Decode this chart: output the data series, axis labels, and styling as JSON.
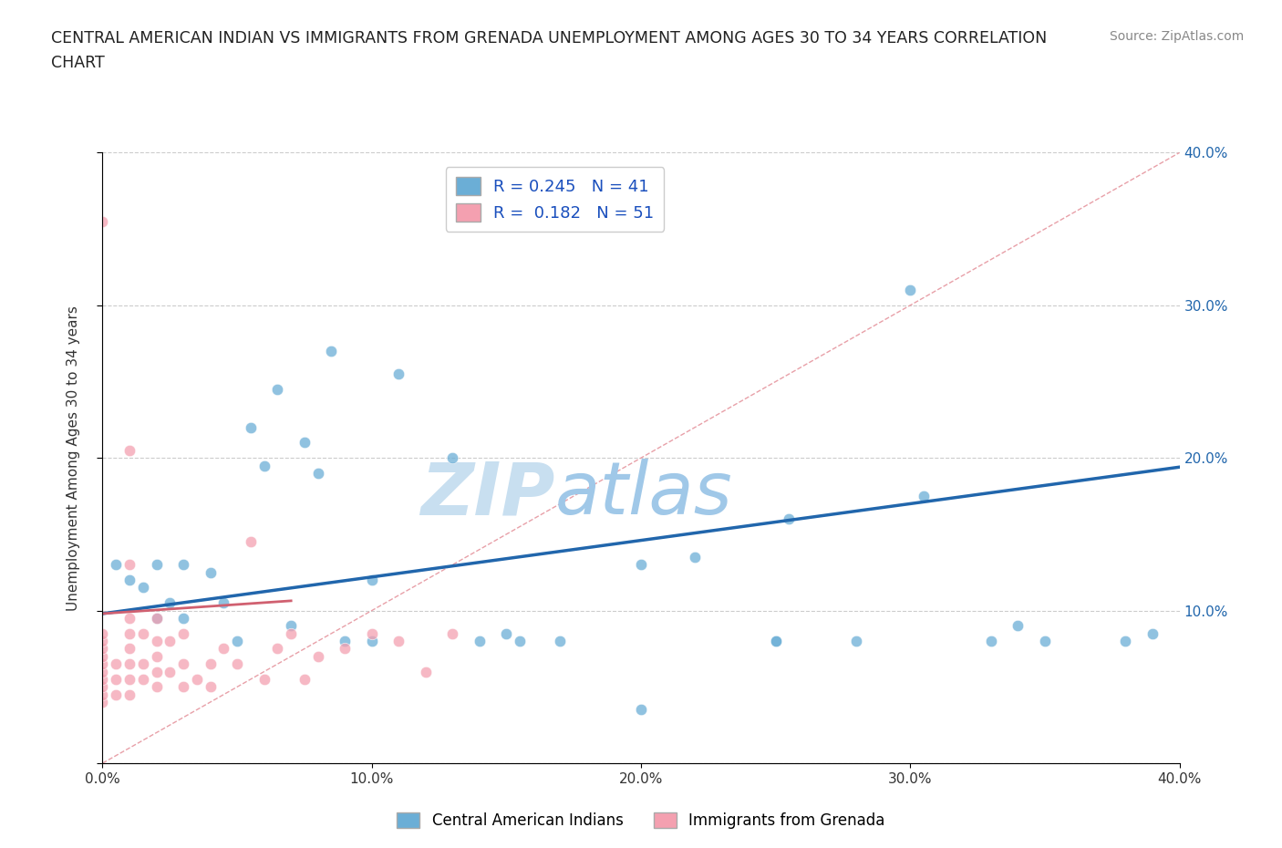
{
  "title_line1": "CENTRAL AMERICAN INDIAN VS IMMIGRANTS FROM GRENADA UNEMPLOYMENT AMONG AGES 30 TO 34 YEARS CORRELATION",
  "title_line2": "CHART",
  "source_text": "Source: ZipAtlas.com",
  "ylabel": "Unemployment Among Ages 30 to 34 years",
  "xlim": [
    0.0,
    0.4
  ],
  "ylim": [
    0.0,
    0.4
  ],
  "x_ticks": [
    0.0,
    0.1,
    0.2,
    0.3,
    0.4
  ],
  "y_ticks": [
    0.0,
    0.1,
    0.2,
    0.3,
    0.4
  ],
  "x_tick_labels": [
    "0.0%",
    "10.0%",
    "20.0%",
    "30.0%",
    "40.0%"
  ],
  "y_tick_labels_right": [
    "",
    "10.0%",
    "20.0%",
    "30.0%",
    "40.0%"
  ],
  "background_color": "#ffffff",
  "watermark_zip": "ZIP",
  "watermark_atlas": "atlas",
  "watermark_color": "#c8dff0",
  "blue_R": 0.245,
  "blue_N": 41,
  "pink_R": 0.182,
  "pink_N": 51,
  "blue_scatter_x": [
    0.005,
    0.01,
    0.015,
    0.02,
    0.02,
    0.025,
    0.03,
    0.03,
    0.04,
    0.045,
    0.05,
    0.055,
    0.06,
    0.065,
    0.07,
    0.075,
    0.08,
    0.085,
    0.09,
    0.1,
    0.1,
    0.11,
    0.13,
    0.14,
    0.15,
    0.155,
    0.17,
    0.2,
    0.22,
    0.25,
    0.255,
    0.28,
    0.3,
    0.305,
    0.33,
    0.34,
    0.35,
    0.38,
    0.39,
    0.2,
    0.25
  ],
  "blue_scatter_y": [
    0.13,
    0.12,
    0.115,
    0.095,
    0.13,
    0.105,
    0.095,
    0.13,
    0.125,
    0.105,
    0.08,
    0.22,
    0.195,
    0.245,
    0.09,
    0.21,
    0.19,
    0.27,
    0.08,
    0.08,
    0.12,
    0.255,
    0.2,
    0.08,
    0.085,
    0.08,
    0.08,
    0.035,
    0.135,
    0.08,
    0.16,
    0.08,
    0.31,
    0.175,
    0.08,
    0.09,
    0.08,
    0.08,
    0.085,
    0.13,
    0.08
  ],
  "pink_scatter_x": [
    0.0,
    0.0,
    0.0,
    0.0,
    0.0,
    0.0,
    0.0,
    0.0,
    0.0,
    0.0,
    0.0,
    0.005,
    0.005,
    0.005,
    0.01,
    0.01,
    0.01,
    0.01,
    0.01,
    0.01,
    0.01,
    0.01,
    0.015,
    0.015,
    0.015,
    0.02,
    0.02,
    0.02,
    0.02,
    0.02,
    0.025,
    0.025,
    0.03,
    0.03,
    0.03,
    0.035,
    0.04,
    0.04,
    0.045,
    0.05,
    0.055,
    0.06,
    0.065,
    0.07,
    0.075,
    0.08,
    0.09,
    0.1,
    0.11,
    0.12,
    0.13
  ],
  "pink_scatter_y": [
    0.04,
    0.045,
    0.05,
    0.055,
    0.06,
    0.065,
    0.07,
    0.075,
    0.08,
    0.085,
    0.355,
    0.045,
    0.055,
    0.065,
    0.045,
    0.055,
    0.065,
    0.075,
    0.085,
    0.095,
    0.13,
    0.205,
    0.055,
    0.065,
    0.085,
    0.05,
    0.06,
    0.07,
    0.08,
    0.095,
    0.06,
    0.08,
    0.05,
    0.065,
    0.085,
    0.055,
    0.05,
    0.065,
    0.075,
    0.065,
    0.145,
    0.055,
    0.075,
    0.085,
    0.055,
    0.07,
    0.075,
    0.085,
    0.08,
    0.06,
    0.085
  ],
  "blue_color": "#6baed6",
  "pink_color": "#f4a0b0",
  "blue_line_color": "#2166ac",
  "pink_line_color": "#c0404a",
  "pink_line_color2": "#d06070",
  "diagonal_color": "#e8a0a8",
  "grid_color": "#cccccc",
  "legend_blue_label": "Central American Indians",
  "legend_pink_label": "Immigrants from Grenada",
  "blue_line_intercept": 0.098,
  "blue_line_slope": 0.24,
  "pink_line_intercept": 0.098,
  "pink_line_slope": 0.12
}
